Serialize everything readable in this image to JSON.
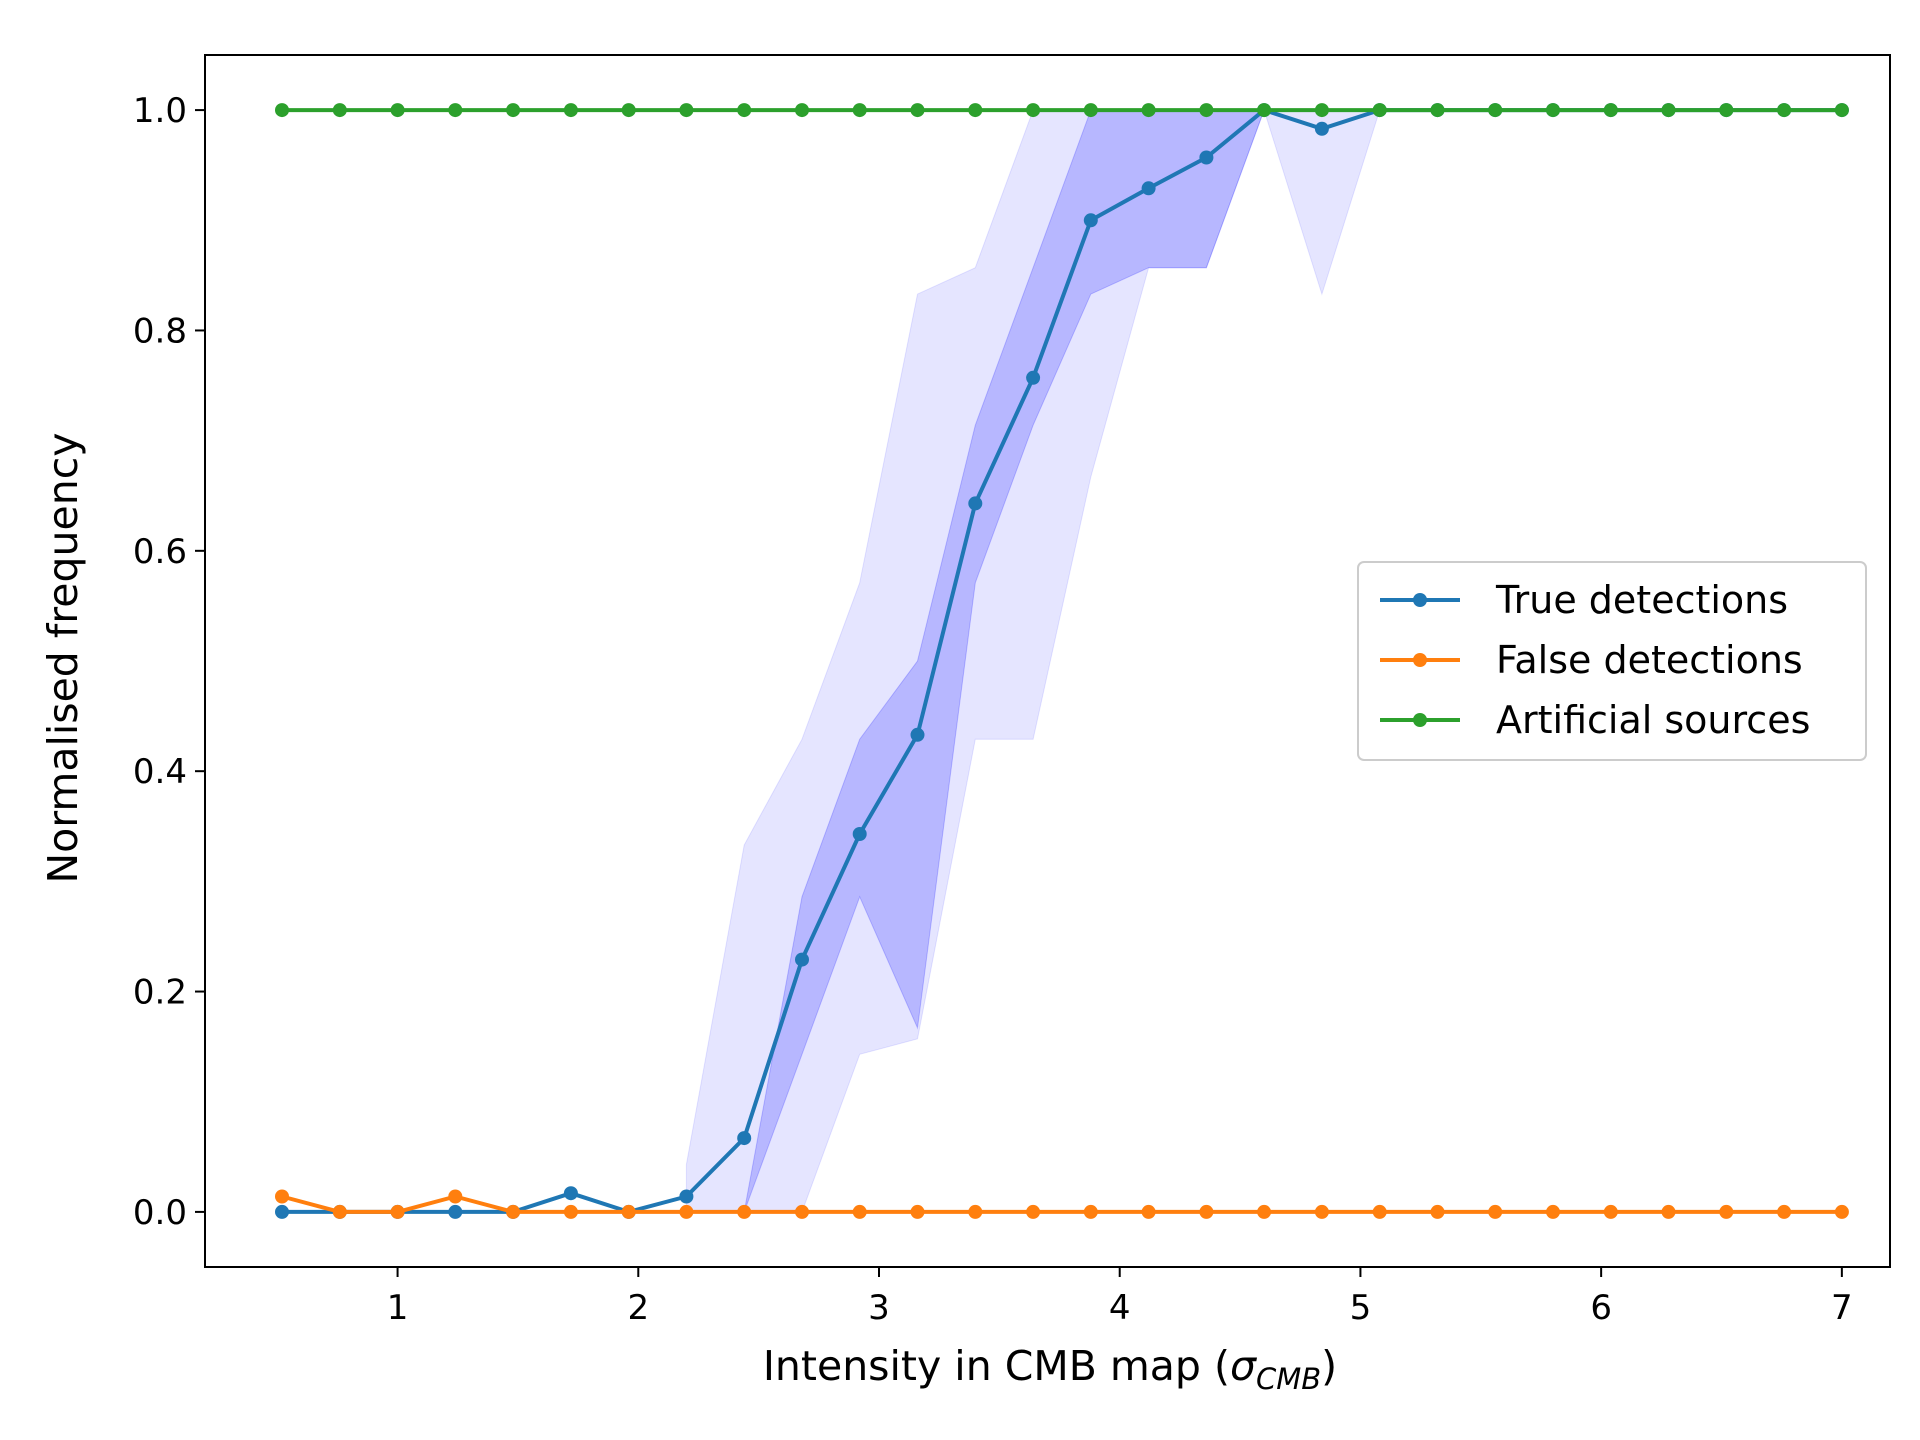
{
  "chart_data": {
    "type": "line",
    "title": "",
    "xlabel_main": "Intensity in CMB map (",
    "xlabel_sigma": "σ",
    "xlabel_sub": "CMB",
    "xlabel_close": ")",
    "ylabel": "Normalised frequency",
    "xlim": [
      0.2,
      7.2
    ],
    "ylim": [
      -0.05,
      1.05
    ],
    "xticks": [
      1,
      2,
      3,
      4,
      5,
      6,
      7
    ],
    "yticks": [
      0.0,
      0.2,
      0.4,
      0.6,
      0.8,
      1.0
    ],
    "ytick_labels": [
      "0.0",
      "0.2",
      "0.4",
      "0.6",
      "0.8",
      "1.0"
    ],
    "legend_position": "center-right",
    "x": [
      0.52,
      0.76,
      1.0,
      1.24,
      1.48,
      1.72,
      1.96,
      2.2,
      2.44,
      2.68,
      2.92,
      3.16,
      3.4,
      3.64,
      3.88,
      4.12,
      4.36,
      4.6,
      4.84,
      5.08,
      5.32,
      5.56,
      5.8,
      6.04,
      6.28,
      6.52,
      6.76,
      7.0
    ],
    "series": [
      {
        "name": "True detections",
        "color": "#1f77b4",
        "values": [
          0,
          0,
          0,
          0,
          0,
          0.017,
          0,
          0.014,
          0.067,
          0.229,
          0.343,
          0.433,
          0.643,
          0.757,
          0.9,
          0.929,
          0.957,
          1.0,
          0.983,
          1.0,
          1.0,
          1.0,
          1.0,
          1.0,
          1.0,
          1.0,
          1.0,
          1.0
        ]
      },
      {
        "name": "False detections",
        "color": "#ff7f0e",
        "values": [
          0.014,
          0,
          0,
          0.014,
          0,
          0,
          0,
          0,
          0,
          0,
          0,
          0,
          0,
          0,
          0,
          0,
          0,
          0,
          0,
          0,
          0,
          0,
          0,
          0,
          0,
          0,
          0,
          0
        ]
      },
      {
        "name": "Artificial sources",
        "color": "#2ca02c",
        "values": [
          1,
          1,
          1,
          1,
          1,
          1,
          1,
          1,
          1,
          1,
          1,
          1,
          1,
          1,
          1,
          1,
          1,
          1,
          1,
          1,
          1,
          1,
          1,
          1,
          1,
          1,
          1,
          1
        ]
      }
    ],
    "bands": [
      {
        "color": "#0000ff",
        "opacity": 0.1,
        "x_start_index": 7,
        "lower": [
          0,
          0,
          0,
          0.143,
          0.157,
          0.429,
          0.429,
          0.667,
          0.857,
          0.857,
          1.0,
          0.833,
          1.0
        ],
        "upper": [
          0.043,
          0.333,
          0.429,
          0.571,
          0.833,
          0.857,
          1.0,
          1.0,
          1.0,
          1.0,
          1.0,
          1.0,
          1.0
        ]
      },
      {
        "color": "#0000ff",
        "opacity": 0.2,
        "x_start_index": 8,
        "lower": [
          0,
          0.143,
          0.286,
          0.167,
          0.571,
          0.714,
          0.833,
          0.857,
          0.857,
          1.0
        ],
        "upper": [
          0,
          0.286,
          0.429,
          0.5,
          0.714,
          0.857,
          1.0,
          1.0,
          1.0,
          1.0
        ]
      }
    ]
  }
}
